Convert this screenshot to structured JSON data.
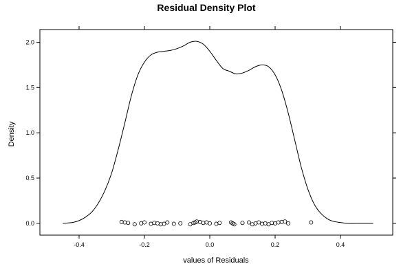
{
  "chart_data": {
    "type": "line",
    "title": "Residual Density Plot",
    "xlabel": "values of Residuals",
    "ylabel": "Density",
    "xlim": [
      -0.52,
      0.56
    ],
    "ylim": [
      -0.13,
      2.14
    ],
    "x_ticks": [
      -0.4,
      -0.2,
      0.0,
      0.2,
      0.4
    ],
    "x_tick_labels": [
      "-0.4",
      "-0.2",
      "0.0",
      "0.2",
      "0.4"
    ],
    "y_ticks": [
      0.0,
      0.5,
      1.0,
      1.5,
      2.0
    ],
    "y_tick_labels": [
      "0.0",
      "0.5",
      "1.0",
      "1.5",
      "2.0"
    ],
    "grid": false,
    "series": [
      {
        "x": [
          -0.45,
          -0.42,
          -0.4,
          -0.38,
          -0.36,
          -0.34,
          -0.32,
          -0.3,
          -0.28,
          -0.26,
          -0.24,
          -0.22,
          -0.2,
          -0.18,
          -0.16,
          -0.14,
          -0.12,
          -0.1,
          -0.08,
          -0.06,
          -0.04,
          -0.02,
          0.0,
          0.02,
          0.04,
          0.06,
          0.08,
          0.1,
          0.12,
          0.14,
          0.16,
          0.18,
          0.2,
          0.22,
          0.24,
          0.26,
          0.28,
          0.3,
          0.32,
          0.34,
          0.36,
          0.38,
          0.4,
          0.42,
          0.45,
          0.5
        ],
        "y": [
          0.0,
          0.01,
          0.03,
          0.07,
          0.13,
          0.23,
          0.37,
          0.56,
          0.82,
          1.11,
          1.41,
          1.64,
          1.78,
          1.86,
          1.89,
          1.9,
          1.91,
          1.93,
          1.96,
          2.0,
          2.01,
          1.98,
          1.9,
          1.8,
          1.71,
          1.68,
          1.65,
          1.66,
          1.69,
          1.73,
          1.75,
          1.73,
          1.64,
          1.47,
          1.22,
          0.92,
          0.62,
          0.38,
          0.21,
          0.11,
          0.05,
          0.02,
          0.01,
          0.0,
          0.0,
          0.0
        ]
      }
    ],
    "rug_points": {
      "x": [
        -0.27,
        -0.26,
        -0.25,
        -0.23,
        -0.21,
        -0.2,
        -0.18,
        -0.17,
        -0.16,
        -0.15,
        -0.14,
        -0.13,
        -0.11,
        -0.09,
        -0.06,
        -0.05,
        -0.045,
        -0.04,
        -0.03,
        -0.02,
        -0.01,
        0.0,
        0.02,
        0.03,
        0.065,
        0.07,
        0.075,
        0.1,
        0.12,
        0.13,
        0.14,
        0.15,
        0.16,
        0.17,
        0.18,
        0.19,
        0.2,
        0.21,
        0.22,
        0.23,
        0.24,
        0.31
      ],
      "y": [
        0.015,
        0.01,
        0.005,
        -0.01,
        0.0,
        0.01,
        -0.005,
        0.005,
        0.0,
        -0.01,
        -0.005,
        0.01,
        -0.005,
        0.0,
        -0.01,
        0.005,
        0.01,
        0.02,
        0.015,
        0.005,
        0.01,
        0.0,
        -0.005,
        0.005,
        0.01,
        0.0,
        -0.01,
        0.005,
        0.01,
        -0.01,
        0.0,
        0.01,
        -0.005,
        0.0,
        -0.01,
        0.005,
        0.0,
        0.01,
        0.015,
        0.02,
        0.0,
        0.01
      ]
    }
  }
}
